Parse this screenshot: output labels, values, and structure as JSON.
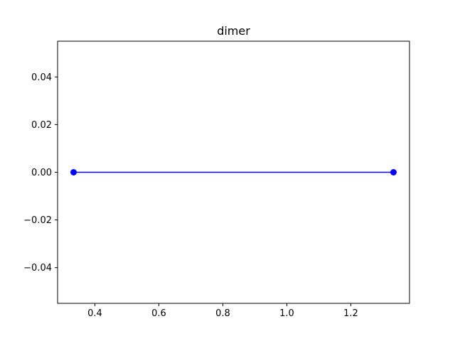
{
  "chart_data": {
    "type": "line",
    "title": "dimer",
    "xlabel": "",
    "ylabel": "",
    "xlim": [
      0.2833,
      1.3833
    ],
    "ylim": [
      -0.055,
      0.055
    ],
    "x_ticks": [
      0.4,
      0.6,
      0.8,
      1.0,
      1.2
    ],
    "x_tick_labels": [
      "0.4",
      "0.6",
      "0.8",
      "1.0",
      "1.2"
    ],
    "y_ticks": [
      0.04,
      0.02,
      0.0,
      -0.02,
      -0.04
    ],
    "y_tick_labels": [
      "0.04",
      "0.02",
      "0.00",
      "−0.02",
      "−0.04"
    ],
    "grid": false,
    "series": [
      {
        "x": [
          0.3333,
          1.3333
        ],
        "y": [
          0.0,
          0.0
        ],
        "color": "#0000ff",
        "marker": "circle"
      }
    ]
  }
}
